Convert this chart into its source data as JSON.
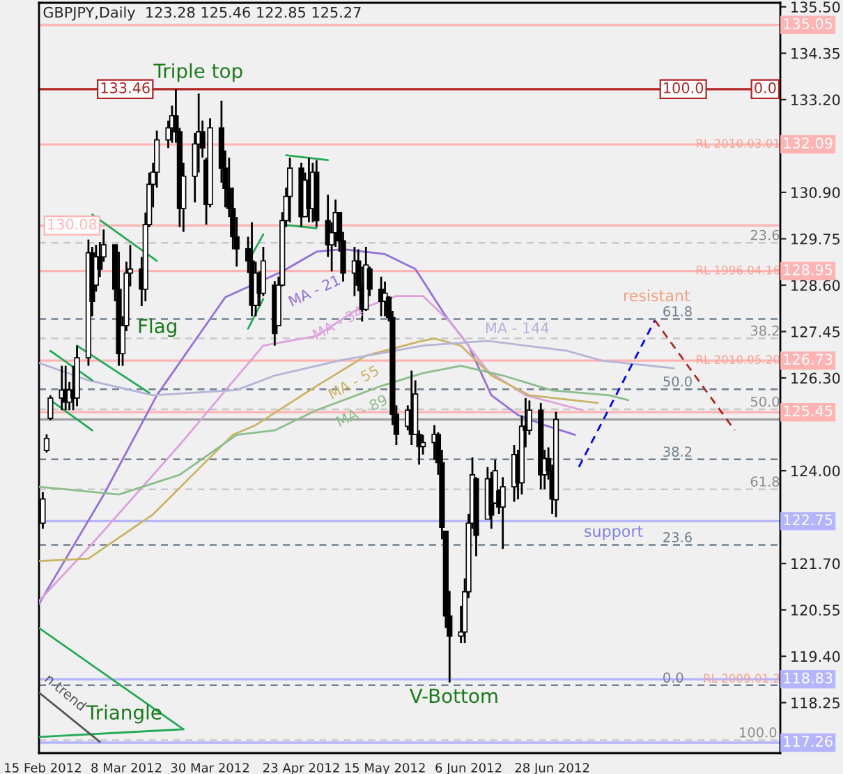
{
  "chart_data": {
    "type": "candlestick",
    "title": "GBPJPY,Daily  123.28 125.46 122.85 125.27",
    "x": [
      "2012-02-15",
      "2012-02-16",
      "2012-02-17",
      "2012-02-20",
      "2012-02-21",
      "2012-02-22",
      "2012-02-23",
      "2012-02-24",
      "2012-02-27",
      "2012-02-28",
      "2012-02-29",
      "2012-03-01",
      "2012-03-02",
      "2012-03-05",
      "2012-03-06",
      "2012-03-07",
      "2012-03-08",
      "2012-03-09",
      "2012-03-12",
      "2012-03-13",
      "2012-03-14",
      "2012-03-15",
      "2012-03-16",
      "2012-03-19",
      "2012-03-20",
      "2012-03-21",
      "2012-03-22",
      "2012-03-23",
      "2012-03-26",
      "2012-03-27",
      "2012-03-28",
      "2012-03-29",
      "2012-03-30",
      "2012-04-02",
      "2012-04-03",
      "2012-04-04",
      "2012-04-05",
      "2012-04-06",
      "2012-04-09",
      "2012-04-10",
      "2012-04-11",
      "2012-04-12",
      "2012-04-13",
      "2012-04-16",
      "2012-04-17",
      "2012-04-18",
      "2012-04-19",
      "2012-04-20",
      "2012-04-23",
      "2012-04-24",
      "2012-04-25",
      "2012-04-26",
      "2012-04-27",
      "2012-04-30",
      "2012-05-01",
      "2012-05-02",
      "2012-05-03",
      "2012-05-04",
      "2012-05-07",
      "2012-05-08",
      "2012-05-09",
      "2012-05-10",
      "2012-05-11",
      "2012-05-14",
      "2012-05-15",
      "2012-05-16",
      "2012-05-17",
      "2012-05-18",
      "2012-05-21",
      "2012-05-22",
      "2012-05-23",
      "2012-05-24",
      "2012-05-25",
      "2012-05-28",
      "2012-05-29",
      "2012-05-30",
      "2012-05-31",
      "2012-06-01",
      "2012-06-04",
      "2012-06-05",
      "2012-06-06",
      "2012-06-07",
      "2012-06-08",
      "2012-06-11",
      "2012-06-12",
      "2012-06-13",
      "2012-06-14",
      "2012-06-15",
      "2012-06-18",
      "2012-06-19",
      "2012-06-20",
      "2012-06-21",
      "2012-06-22",
      "2012-06-25",
      "2012-06-26",
      "2012-06-27",
      "2012-06-28",
      "2012-06-29"
    ],
    "color": "#000000",
    "ohlc": [
      [
        122.7,
        123.47,
        122.56,
        123.3
      ],
      [
        124.5,
        124.9,
        124.45,
        124.8
      ],
      [
        125.3,
        125.87,
        125.25,
        125.8
      ],
      [
        125.8,
        126.6,
        125.5,
        126.0
      ],
      [
        126.0,
        126.6,
        125.5,
        125.7
      ],
      [
        125.7,
        126.2,
        125.5,
        126.0
      ],
      [
        126.0,
        126.6,
        125.5,
        125.8
      ],
      [
        125.8,
        127.1,
        125.6,
        126.8
      ],
      [
        126.8,
        129.73,
        126.6,
        129.4
      ],
      [
        129.4,
        129.55,
        127.83,
        128.2
      ],
      [
        128.6,
        129.6,
        128.44,
        129.3
      ],
      [
        129.3,
        129.67,
        128.8,
        129.0
      ],
      [
        129.3,
        129.98,
        129.18,
        129.6
      ],
      [
        129.6,
        129.6,
        128.2,
        128.5
      ],
      [
        128.5,
        129.43,
        126.6,
        126.9
      ],
      [
        126.9,
        127.83,
        126.6,
        127.6
      ],
      [
        127.6,
        129.18,
        127.46,
        128.9
      ],
      [
        128.9,
        129.6,
        128.57,
        129.0
      ],
      [
        129.0,
        129.3,
        128.08,
        128.5
      ],
      [
        128.5,
        130.4,
        128.2,
        130.1
      ],
      [
        130.1,
        131.39,
        130.04,
        131.1
      ],
      [
        131.1,
        131.63,
        130.53,
        131.4
      ],
      [
        131.4,
        132.43,
        131.02,
        132.2
      ],
      [
        132.2,
        132.68,
        132.0,
        132.5
      ],
      [
        132.5,
        133.05,
        132.13,
        132.8
      ],
      [
        132.8,
        133.46,
        132.13,
        132.4
      ],
      [
        132.4,
        132.5,
        130.04,
        130.5
      ],
      [
        130.5,
        131.63,
        129.92,
        131.3
      ],
      [
        131.3,
        132.37,
        130.65,
        132.1
      ],
      [
        132.1,
        133.35,
        131.39,
        132.4
      ],
      [
        132.4,
        132.68,
        131.76,
        132.0
      ],
      [
        131.7,
        131.76,
        130.1,
        130.6
      ],
      [
        130.6,
        132.74,
        130.53,
        132.5
      ],
      [
        132.5,
        133.17,
        131.14,
        131.5
      ],
      [
        131.5,
        131.94,
        130.53,
        131.0
      ],
      [
        131.0,
        131.76,
        130.29,
        130.5
      ],
      [
        130.5,
        131.02,
        129.49,
        129.8
      ],
      [
        129.8,
        130.29,
        129.06,
        129.5
      ],
      [
        129.5,
        129.8,
        128.9,
        129.2
      ],
      [
        129.2,
        130.16,
        127.83,
        128.1
      ],
      [
        128.1,
        129.18,
        127.83,
        128.9
      ],
      [
        128.9,
        128.94,
        128.08,
        128.4
      ],
      [
        128.4,
        129.55,
        128.33,
        129.2
      ],
      [
        128.6,
        128.7,
        127.1,
        127.4
      ],
      [
        127.6,
        128.81,
        127.6,
        128.6
      ],
      [
        128.6,
        130.41,
        128.57,
        130.2
      ],
      [
        130.2,
        131.02,
        130.04,
        130.8
      ],
      [
        130.8,
        131.76,
        130.16,
        131.5
      ],
      [
        131.5,
        131.63,
        130.04,
        130.3
      ],
      [
        130.3,
        131.39,
        130.29,
        131.2
      ],
      [
        131.2,
        131.76,
        130.16,
        130.5
      ],
      [
        130.5,
        131.63,
        130.16,
        131.4
      ],
      [
        131.4,
        131.7,
        130.04,
        130.2
      ],
      [
        130.2,
        130.84,
        129.3,
        129.6
      ],
      [
        129.6,
        130.16,
        128.94,
        129.9
      ],
      [
        129.9,
        130.72,
        129.55,
        130.4
      ],
      [
        130.4,
        130.41,
        129.43,
        129.7
      ],
      [
        129.7,
        129.92,
        128.69,
        128.9
      ],
      [
        128.9,
        129.55,
        128.33,
        129.2
      ],
      [
        129.2,
        129.49,
        128.45,
        128.6
      ],
      [
        128.6,
        129.06,
        127.7,
        128.0
      ],
      [
        128.0,
        129.55,
        127.96,
        129.1
      ],
      [
        129.0,
        129.06,
        128.33,
        128.5
      ],
      [
        128.5,
        128.81,
        127.83,
        128.2
      ],
      [
        128.2,
        128.69,
        127.83,
        128.4
      ],
      [
        128.3,
        128.33,
        127.7,
        127.8
      ],
      [
        127.8,
        127.96,
        125.13,
        125.4
      ],
      [
        125.4,
        125.62,
        124.64,
        124.9
      ],
      [
        125.1,
        125.62,
        125.0,
        125.5
      ],
      [
        125.5,
        126.48,
        124.64,
        124.9
      ],
      [
        124.9,
        126.24,
        124.89,
        125.9
      ],
      [
        124.9,
        125.0,
        124.15,
        124.6
      ],
      [
        124.6,
        124.89,
        124.4,
        124.7
      ],
      [
        124.7,
        125.13,
        124.27,
        124.9
      ],
      [
        124.9,
        124.95,
        123.9,
        124.2
      ],
      [
        124.2,
        124.52,
        122.3,
        122.6
      ],
      [
        122.5,
        122.5,
        120.1,
        120.4
      ],
      [
        120.4,
        121.02,
        118.75,
        119.9
      ],
      [
        119.9,
        120.65,
        119.73,
        120.0
      ],
      [
        120.0,
        121.33,
        119.73,
        121.0
      ],
      [
        121.0,
        122.93,
        120.84,
        122.7
      ],
      [
        122.7,
        124.33,
        122.56,
        123.9
      ],
      [
        123.8,
        123.84,
        121.88,
        122.4
      ],
      [
        122.8,
        124.09,
        122.8,
        123.8
      ],
      [
        123.8,
        123.97,
        122.56,
        122.9
      ],
      [
        123.2,
        124.27,
        123.17,
        124.0
      ],
      [
        123.5,
        123.54,
        122.93,
        123.1
      ],
      [
        123.1,
        123.84,
        122.06,
        123.6
      ],
      [
        123.6,
        124.64,
        123.23,
        124.4
      ],
      [
        124.4,
        124.52,
        123.29,
        123.7
      ],
      [
        123.7,
        125.37,
        123.41,
        125.1
      ],
      [
        125.1,
        125.8,
        124.58,
        125.0
      ],
      [
        125.0,
        125.74,
        124.89,
        125.5
      ],
      [
        125.5,
        125.68,
        123.54,
        123.9
      ],
      [
        123.9,
        124.52,
        123.54,
        124.3
      ],
      [
        124.3,
        124.58,
        123.78,
        124.0
      ],
      [
        124.0,
        124.15,
        122.93,
        123.3
      ],
      [
        123.28,
        125.46,
        122.85,
        125.27
      ]
    ],
    "series": [
      {
        "type": "line",
        "color": "#9370db",
        "x": [
          "2012-02-14",
          "2012-03-02",
          "2012-03-16",
          "2012-04-03",
          "2012-04-18",
          "2012-04-27",
          "2012-05-04",
          "2012-05-15",
          "2012-05-23",
          "2012-05-31",
          "2012-06-06",
          "2012-06-12",
          "2012-06-19",
          "2012-06-26",
          "2012-07-04"
        ],
        "values": [
          120.7,
          123.4,
          125.87,
          128.3,
          128.94,
          129.43,
          129.49,
          129.37,
          129.0,
          127.83,
          127.1,
          125.87,
          125.38,
          125.13,
          124.89
        ]
      },
      {
        "type": "line",
        "color": "#dda0dd",
        "x": [
          "2012-02-14",
          "2012-02-28",
          "2012-03-22",
          "2012-04-04",
          "2012-04-13",
          "2012-04-27",
          "2012-05-07",
          "2012-05-18",
          "2012-05-25",
          "2012-06-01",
          "2012-06-11",
          "2012-06-21",
          "2012-07-06"
        ],
        "values": [
          120.77,
          122.19,
          124.64,
          126.1,
          127.1,
          127.34,
          127.96,
          128.33,
          128.33,
          127.7,
          126.48,
          125.87,
          125.5
        ]
      },
      {
        "type": "line",
        "color": "#c8b464",
        "x": [
          "2012-02-14",
          "2012-02-27",
          "2012-03-15",
          "2012-04-05",
          "2012-04-11",
          "2012-04-27",
          "2012-05-10",
          "2012-05-24",
          "2012-05-28",
          "2012-06-04",
          "2012-06-12",
          "2012-06-22",
          "2012-07-10"
        ],
        "values": [
          121.76,
          121.82,
          122.92,
          124.89,
          125.13,
          126.1,
          126.85,
          127.2,
          127.28,
          127.1,
          126.36,
          125.87,
          125.68
        ]
      },
      {
        "type": "line",
        "color": "#8cbe8c",
        "x": [
          "2012-02-14",
          "2012-03-06",
          "2012-03-22",
          "2012-04-06",
          "2012-04-16",
          "2012-04-27",
          "2012-05-14",
          "2012-05-25",
          "2012-06-04",
          "2012-06-15",
          "2012-06-28",
          "2012-07-13",
          "2012-07-18"
        ],
        "values": [
          123.6,
          123.41,
          123.9,
          124.89,
          125.0,
          125.5,
          126.1,
          126.42,
          126.6,
          126.36,
          125.99,
          125.87,
          125.75
        ]
      },
      {
        "type": "line",
        "color": "#b4b4d7",
        "x": [
          "2012-02-14",
          "2012-02-27",
          "2012-03-15",
          "2012-04-06",
          "2012-04-16",
          "2012-05-03",
          "2012-05-25",
          "2012-06-11",
          "2012-07-02",
          "2012-07-11",
          "2012-07-30"
        ],
        "values": [
          126.67,
          126.24,
          125.87,
          126.0,
          126.36,
          126.73,
          127.1,
          127.22,
          126.97,
          126.73,
          126.54
        ]
      },
      {
        "type": "line",
        "color": "#0000ff",
        "line_style": "dashed",
        "x": [
          "2012-07-05",
          "2012-07-25"
        ],
        "values": [
          124.09,
          127.73
        ]
      },
      {
        "type": "line",
        "color": "#b22222",
        "line_style": "dashed",
        "x": [
          "2012-07-25",
          "2012-08-15"
        ],
        "values": [
          127.73,
          125.0
        ]
      },
      {
        "type": "line",
        "color": "#22aa55",
        "x": [
          "2012-02-14",
          "2012-03-23"
        ],
        "values": [
          120.1,
          117.59
        ]
      },
      {
        "type": "line",
        "color": "#22aa55",
        "x": [
          "2012-02-14",
          "2012-03-23"
        ],
        "values": [
          117.4,
          117.59
        ]
      },
      {
        "type": "line",
        "color": "#555555",
        "x": [
          "2012-02-14",
          "2012-03-01"
        ],
        "values": [
          118.5,
          117.28
        ]
      },
      {
        "type": "line",
        "color": "#22aa55",
        "x": [
          "2012-02-28",
          "2012-03-16"
        ],
        "values": [
          130.35,
          129.2
        ]
      },
      {
        "type": "line",
        "color": "#22aa55",
        "x": [
          "2012-02-24",
          "2012-03-14"
        ],
        "values": [
          127.1,
          125.93
        ]
      },
      {
        "type": "line",
        "color": "#22aa55",
        "x": [
          "2012-02-17",
          "2012-02-28"
        ],
        "values": [
          126.97,
          126.24
        ]
      },
      {
        "type": "line",
        "color": "#22aa55",
        "x": [
          "2012-02-17",
          "2012-02-28"
        ],
        "values": [
          125.75,
          125.0
        ]
      },
      {
        "type": "line",
        "color": "#22aa55",
        "x": [
          "2012-04-09",
          "2012-04-13"
        ],
        "values": [
          129.18,
          129.86
        ]
      },
      {
        "type": "line",
        "color": "#22aa55",
        "x": [
          "2012-04-09",
          "2012-04-13"
        ],
        "values": [
          127.52,
          128.26
        ]
      },
      {
        "type": "line",
        "color": "#22aa55",
        "x": [
          "2012-04-19",
          "2012-04-30"
        ],
        "values": [
          131.82,
          131.7
        ]
      },
      {
        "type": "line",
        "color": "#22aa55",
        "x": [
          "2012-04-18",
          "2012-04-27"
        ],
        "values": [
          130.1,
          130.01
        ]
      }
    ],
    "xlim": [
      "2012-02-14",
      "2012-08-27"
    ],
    "xticks": [
      {
        "value": "2012-02-15",
        "label": "15 Feb 2012"
      },
      {
        "value": "2012-03-08",
        "label": "8 Mar 2012"
      },
      {
        "value": "2012-03-30",
        "label": "30 Mar 2012"
      },
      {
        "value": "2012-04-23",
        "label": "23 Apr 2012"
      },
      {
        "value": "2012-05-15",
        "label": "15 May 2012"
      },
      {
        "value": "2012-06-06",
        "label": "6 Jun 2012"
      },
      {
        "value": "2012-06-28",
        "label": "28 Jun 2012"
      }
    ],
    "ylim": [
      117.0,
      135.6
    ],
    "yticks": [
      {
        "value": 135.5,
        "label": "135.50"
      },
      {
        "value": 134.35,
        "label": "134.35"
      },
      {
        "value": 133.2,
        "label": "133.20"
      },
      {
        "value": 130.9,
        "label": "130.90"
      },
      {
        "value": 129.75,
        "label": "129.75"
      },
      {
        "value": 128.6,
        "label": "128.60"
      },
      {
        "value": 127.45,
        "label": "127.45"
      },
      {
        "value": 126.3,
        "label": "126.30"
      },
      {
        "value": 124.0,
        "label": "124.00"
      },
      {
        "value": 121.7,
        "label": "121.70"
      },
      {
        "value": 120.55,
        "label": "120.55"
      },
      {
        "value": 119.4,
        "label": "119.40"
      },
      {
        "value": 118.25,
        "label": "118.25"
      }
    ],
    "ref_lines": [
      {
        "axis": "y",
        "value": 135.05,
        "label": "135.05",
        "color": "#ffb4b4",
        "line_style": "solid"
      },
      {
        "axis": "y",
        "value": 133.46,
        "label": null,
        "color": "#b22222",
        "line_style": "solid"
      },
      {
        "axis": "y",
        "value": 132.09,
        "label": "132.09",
        "color": "#ffb4b4",
        "line_style": "solid"
      },
      {
        "axis": "y",
        "value": 130.08,
        "label": null,
        "color": "#ffb4b4",
        "line_style": "solid"
      },
      {
        "axis": "y",
        "value": 128.95,
        "label": "128.95",
        "color": "#ffb4b4",
        "line_style": "solid"
      },
      {
        "axis": "y",
        "value": 126.73,
        "label": "126.73",
        "color": "#ffb4b4",
        "line_style": "solid"
      },
      {
        "axis": "y",
        "value": 125.45,
        "label": "125.45",
        "color": "#ffb4b4",
        "line_style": "solid"
      },
      {
        "axis": "y",
        "value": 125.27,
        "label": null,
        "color": "#a0a0a0",
        "line_style": "solid"
      },
      {
        "axis": "y",
        "value": 122.75,
        "label": "122.75",
        "color": "#b4b4ff",
        "line_style": "solid"
      },
      {
        "axis": "y",
        "value": 118.83,
        "label": "118.83",
        "color": "#b4b4ff",
        "line_style": "solid"
      },
      {
        "axis": "y",
        "value": 117.26,
        "label": "117.26",
        "color": "#b4b4ff",
        "line_style": "solid"
      },
      {
        "axis": "y",
        "value": 129.65,
        "label": null,
        "color": "#c8c8c8",
        "line_style": "dashed"
      },
      {
        "axis": "y",
        "value": 127.28,
        "label": null,
        "color": "#c8c8c8",
        "line_style": "dashed"
      },
      {
        "axis": "y",
        "value": 125.52,
        "label": null,
        "color": "#c8c8c8",
        "line_style": "dashed"
      },
      {
        "axis": "y",
        "value": 123.54,
        "label": null,
        "color": "#c8c8c8",
        "line_style": "dashed"
      },
      {
        "axis": "y",
        "value": 117.32,
        "label": null,
        "color": "#c8c8c8",
        "line_style": "dashed"
      },
      {
        "axis": "y",
        "value": 127.76,
        "label": null,
        "color": "#708090",
        "line_style": "dashed"
      },
      {
        "axis": "y",
        "value": 126.02,
        "label": null,
        "color": "#708090",
        "line_style": "dashed"
      },
      {
        "axis": "y",
        "value": 124.28,
        "label": null,
        "color": "#708090",
        "line_style": "dashed"
      },
      {
        "axis": "y",
        "value": 122.16,
        "label": null,
        "color": "#708090",
        "line_style": "dashed"
      },
      {
        "axis": "y",
        "value": 118.68,
        "label": null,
        "color": "#708090",
        "line_style": "dashed"
      }
    ],
    "annotations": [
      "Triple top",
      "Flag",
      "Triangle",
      "V-Bottom",
      "resistant",
      "support",
      "n trend",
      "MA - 21",
      "MA - 34",
      "MA - 55",
      "MA - 89",
      "MA - 144",
      {
        "text": "133.46",
        "x": "2012-03-01",
        "y": 133.46
      },
      {
        "text": "130.08",
        "x": "2012-02-16",
        "y": 130.08
      },
      {
        "text": "RL 2010.03.01",
        "x": "2012-08-27",
        "y": 132.09
      },
      {
        "text": "RL 1996.04.16",
        "x": "2012-08-27",
        "y": 128.95
      },
      {
        "text": "RL 2010.05.20",
        "x": "2012-08-27",
        "y": 126.73
      },
      {
        "text": "RL 2009.01.2",
        "x": "2012-08-27",
        "y": 118.83
      },
      {
        "text": "100.0",
        "x": "2012-07-27",
        "y": 133.46
      },
      {
        "text": "61.8",
        "x": "2012-07-27",
        "y": 127.76
      },
      {
        "text": "50.0",
        "x": "2012-07-27",
        "y": 126.02
      },
      {
        "text": "38.2",
        "x": "2012-07-27",
        "y": 124.28
      },
      {
        "text": "23.6",
        "x": "2012-07-27",
        "y": 122.16
      },
      {
        "text": "0.0",
        "x": "2012-07-27",
        "y": 118.68
      },
      {
        "text": "0.0",
        "x": "2012-08-20",
        "y": 133.46
      },
      {
        "text": "23.6",
        "x": "2012-08-19",
        "y": 129.65
      },
      {
        "text": "38.2",
        "x": "2012-08-19",
        "y": 127.28
      },
      {
        "text": "50.0",
        "x": "2012-08-19",
        "y": 125.52
      },
      {
        "text": "61.8",
        "x": "2012-08-19",
        "y": 123.54
      },
      {
        "text": "100.0",
        "x": "2012-08-16",
        "y": 117.32
      }
    ],
    "grid": false,
    "legend": false
  }
}
